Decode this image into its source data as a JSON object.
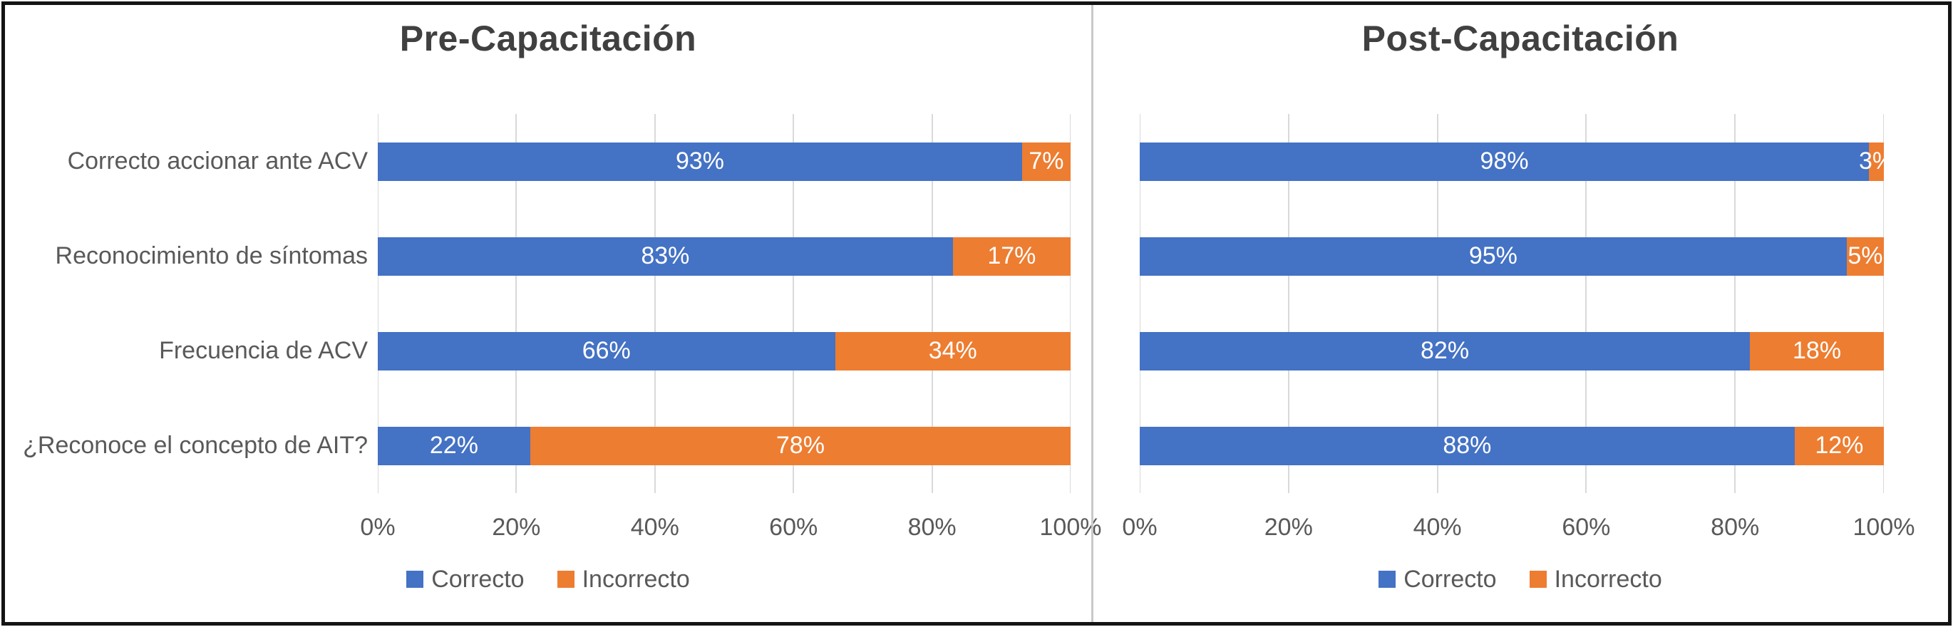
{
  "figure": {
    "legend_labels": [
      "Correcto",
      "Incorrecto"
    ],
    "colors": {
      "correcto": "#4472C4",
      "incorrecto": "#ED7D31",
      "title_text": "#404040",
      "axis_text": "#595959",
      "gridline": "#d9d9d9",
      "data_label_text": "#ffffff"
    }
  },
  "chart_data": [
    {
      "type": "bar",
      "orientation": "horizontal",
      "stacked": true,
      "title": "Pre-Capacitación",
      "categories": [
        "Correcto accionar ante ACV",
        "Reconocimiento de síntomas",
        "Frecuencia de ACV",
        "¿Reconoce el concepto de AIT?"
      ],
      "series": [
        {
          "name": "Correcto",
          "color": "#4472C4",
          "values": [
            93,
            83,
            66,
            22
          ]
        },
        {
          "name": "Incorrecto",
          "color": "#ED7D31",
          "values": [
            7,
            17,
            34,
            78
          ]
        }
      ],
      "x_ticks": [
        "0%",
        "20%",
        "40%",
        "60%",
        "80%",
        "100%"
      ],
      "xlim": [
        0,
        100
      ],
      "value_suffix": "%",
      "grid": true,
      "legend_position": "bottom",
      "show_category_labels": true
    },
    {
      "type": "bar",
      "orientation": "horizontal",
      "stacked": true,
      "title": "Post-Capacitación",
      "categories": [
        "Correcto accionar ante ACV",
        "Reconocimiento de síntomas",
        "Frecuencia de ACV",
        "¿Reconoce el concepto de AIT?"
      ],
      "series": [
        {
          "name": "Correcto",
          "color": "#4472C4",
          "values": [
            98,
            95,
            82,
            88
          ]
        },
        {
          "name": "Incorrecto",
          "color": "#ED7D31",
          "values": [
            3,
            5,
            18,
            12
          ]
        }
      ],
      "x_ticks": [
        "0%",
        "20%",
        "40%",
        "60%",
        "80%",
        "100%"
      ],
      "xlim": [
        0,
        100
      ],
      "value_suffix": "%",
      "grid": true,
      "legend_position": "bottom",
      "show_category_labels": false
    }
  ]
}
